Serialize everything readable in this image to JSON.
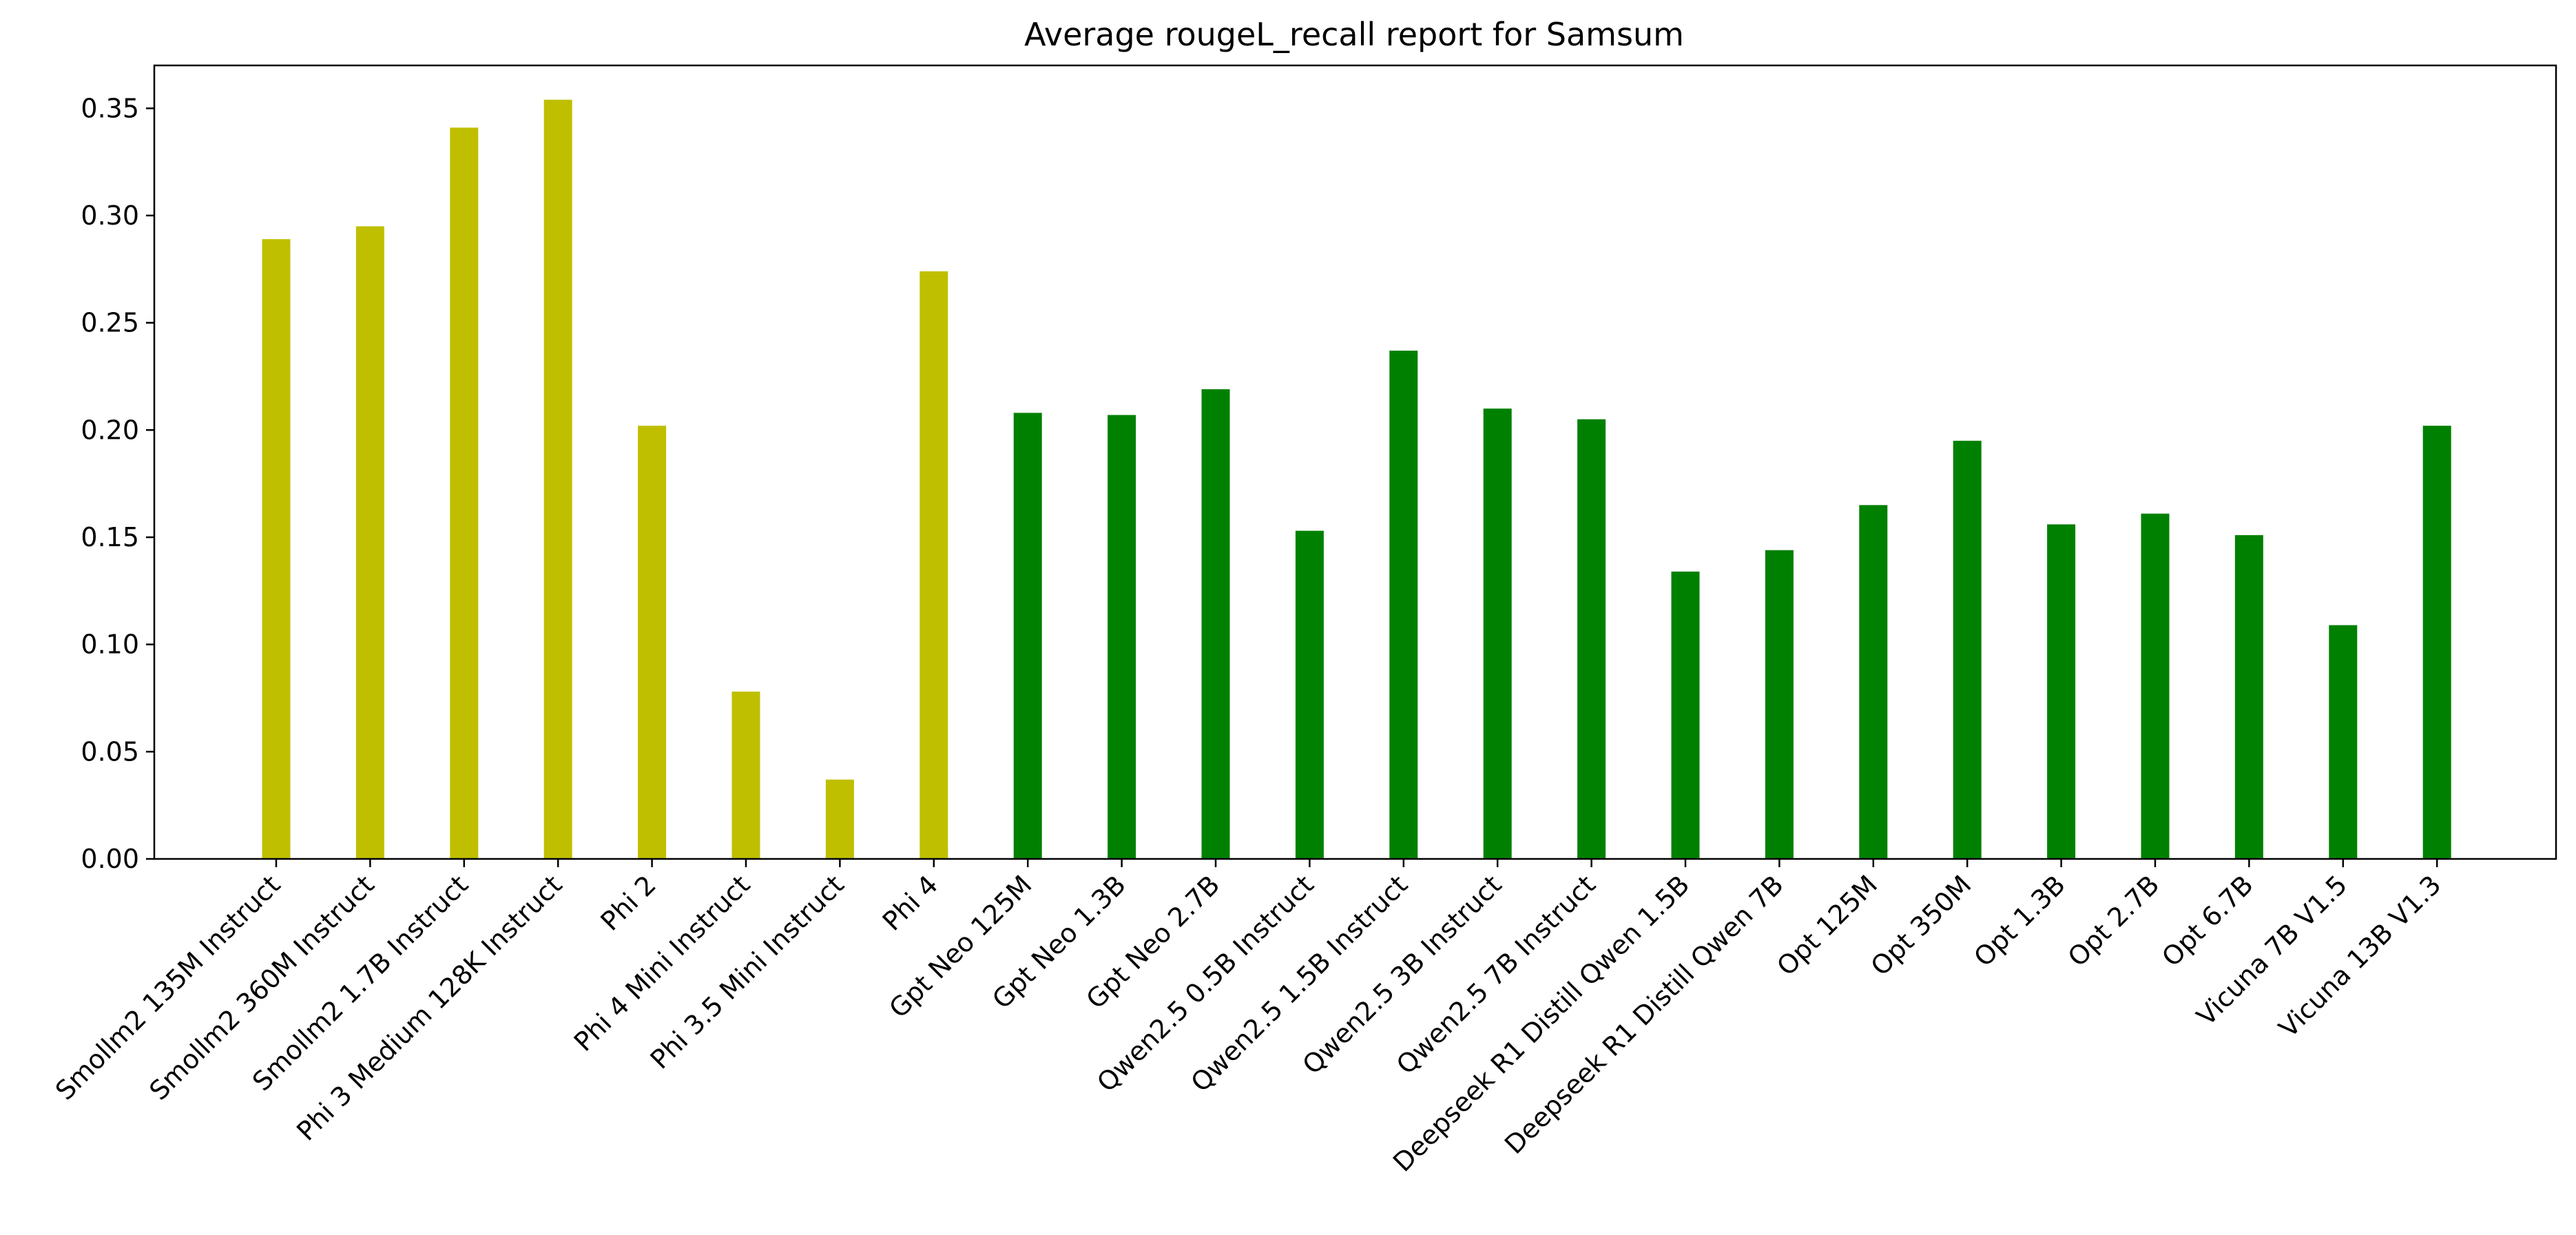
{
  "chart_data": {
    "type": "bar",
    "title": "Average rougeL_recall report for Samsum",
    "xlabel": "",
    "ylabel": "",
    "ylim": [
      0,
      0.37
    ],
    "yticks": [
      "0.00",
      "0.05",
      "0.10",
      "0.15",
      "0.20",
      "0.25",
      "0.30",
      "0.35"
    ],
    "grid": false,
    "colors": {
      "group_a": "#bfbf00",
      "group_b": "#008000"
    },
    "categories": [
      "Smollm2 135M Instruct",
      "Smollm2 360M Instruct",
      "Smollm2 1.7B Instruct",
      "Phi 3 Medium 128K Instruct",
      "Phi 2",
      "Phi 4 Mini Instruct",
      "Phi 3.5 Mini Instruct",
      "Phi 4",
      "Gpt Neo 125M",
      "Gpt Neo 1.3B",
      "Gpt Neo 2.7B",
      "Qwen2.5 0.5B Instruct",
      "Qwen2.5 1.5B Instruct",
      "Qwen2.5 3B Instruct",
      "Qwen2.5 7B Instruct",
      "Deepseek R1 Distill Qwen 1.5B",
      "Deepseek R1 Distill Qwen 7B",
      "Opt 125M",
      "Opt 350M",
      "Opt 1.3B",
      "Opt 2.7B",
      "Opt 6.7B",
      "Vicuna 7B V1.5",
      "Vicuna 13B V1.3"
    ],
    "values": [
      0.289,
      0.295,
      0.341,
      0.354,
      0.202,
      0.078,
      0.037,
      0.274,
      0.208,
      0.207,
      0.219,
      0.153,
      0.237,
      0.21,
      0.205,
      0.134,
      0.144,
      0.165,
      0.195,
      0.156,
      0.161,
      0.151,
      0.109,
      0.202
    ],
    "bar_groups": [
      "a",
      "a",
      "a",
      "a",
      "a",
      "a",
      "a",
      "a",
      "b",
      "b",
      "b",
      "b",
      "b",
      "b",
      "b",
      "b",
      "b",
      "b",
      "b",
      "b",
      "b",
      "b",
      "b",
      "b"
    ]
  }
}
